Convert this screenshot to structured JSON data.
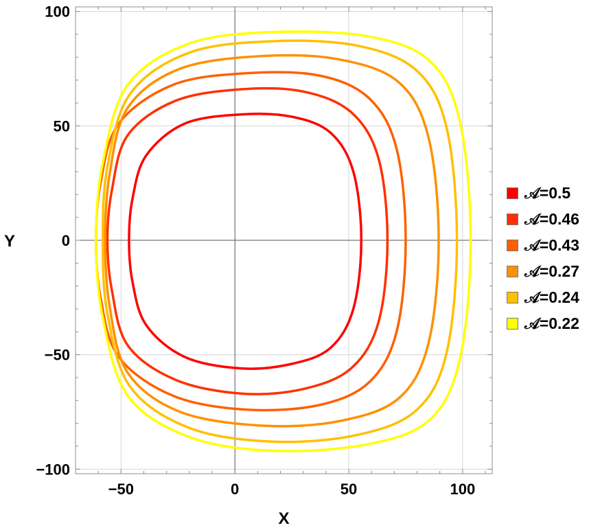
{
  "chart_data": {
    "type": "line",
    "title": "",
    "xlabel": "X",
    "ylabel": "Y",
    "xlim": [
      -70,
      113
    ],
    "ylim": [
      -102,
      102
    ],
    "xticks": [
      -50,
      0,
      50,
      100
    ],
    "yticks": [
      -100,
      -50,
      0,
      50,
      100
    ],
    "xtick_labels": [
      "−50",
      "0",
      "50",
      "100"
    ],
    "ytick_labels": [
      "−100",
      "−50",
      "0",
      "50",
      "100"
    ],
    "grid": true,
    "legend_position": "right",
    "series": [
      {
        "name": "𝒜=0.5",
        "color": "#ff0000",
        "x": [
          55.5,
          52,
          42,
          25,
          3,
          -22,
          -39,
          -45,
          -46.5,
          -45,
          -39,
          -22,
          3,
          25,
          42,
          52,
          55.5
        ],
        "y": [
          0,
          30,
          47,
          54,
          55,
          51,
          37,
          18,
          0,
          -18,
          -37,
          -51,
          -56,
          -54,
          -47,
          -30,
          0
        ]
      },
      {
        "name": "𝒜=0.46",
        "color": "#ff3000",
        "x": [
          67,
          63,
          51,
          30,
          3,
          -26,
          -47,
          -54,
          -56,
          -54,
          -47,
          -26,
          3,
          30,
          51,
          63,
          67
        ],
        "y": [
          0,
          36,
          56,
          65,
          66,
          61,
          46,
          22,
          0,
          -22,
          -46,
          -61,
          -67,
          -65,
          -56,
          -36,
          0
        ]
      },
      {
        "name": "𝒜=0.43",
        "color": "#ff6000",
        "x": [
          75,
          71,
          59,
          37,
          5,
          -27,
          -51,
          -59,
          -61,
          -59,
          -51,
          -27,
          5,
          37,
          59,
          71,
          75
        ],
        "y": [
          0,
          40,
          62,
          72,
          73,
          68,
          51,
          25,
          0,
          -25,
          -51,
          -68,
          -74,
          -72,
          -62,
          -40,
          0
        ]
      },
      {
        "name": "𝒜=0.27",
        "color": "#ff9000",
        "x": [
          89.5,
          85,
          72,
          46,
          12,
          -24,
          -47,
          -55,
          -57,
          -55,
          -47,
          -24,
          12,
          46,
          72,
          85,
          89.5
        ],
        "y": [
          0,
          45,
          69,
          79,
          80.5,
          75,
          58,
          29,
          0,
          -29,
          -58,
          -75,
          -81,
          -79,
          -69,
          -45,
          0
        ]
      },
      {
        "name": "𝒜=0.24",
        "color": "#ffc000",
        "x": [
          97.5,
          93,
          80,
          54,
          17,
          -20,
          -46,
          -56,
          -58,
          -56,
          -46,
          -20,
          17,
          54,
          80,
          93,
          97.5
        ],
        "y": [
          0,
          49,
          74,
          85,
          87,
          82,
          64,
          32,
          0,
          -32,
          -64,
          -82,
          -88,
          -85,
          -74,
          -49,
          0
        ]
      },
      {
        "name": "𝒜=0.22",
        "color": "#ffff00",
        "x": [
          103.5,
          99,
          86,
          59,
          17,
          -20,
          -47,
          -58,
          -61,
          -58,
          -47,
          -20,
          17,
          59,
          86,
          99,
          103.5
        ],
        "y": [
          0,
          51,
          78,
          89,
          91,
          86,
          68,
          34,
          0,
          -34,
          -68,
          -86,
          -92,
          -89,
          -78,
          -51,
          0
        ]
      }
    ]
  }
}
